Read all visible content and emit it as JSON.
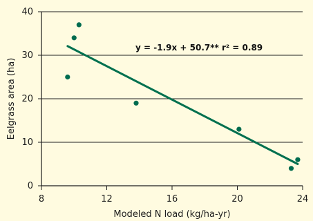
{
  "chart_data": {
    "type": "scatter",
    "title": "",
    "xlabel": "Modeled N load (kg/ha-yr)",
    "ylabel": "Eelgrass area (ha)",
    "xlim": [
      8,
      24
    ],
    "ylim": [
      0,
      40
    ],
    "x_ticks": [
      8,
      12,
      16,
      20,
      24
    ],
    "y_ticks": [
      0,
      10,
      20,
      30,
      40
    ],
    "x_tick_labels": [
      "8",
      "12",
      "16",
      "20",
      "24"
    ],
    "y_tick_labels": [
      "0",
      "10",
      "20",
      "30",
      "40"
    ],
    "grid": "horizontal",
    "series": [
      {
        "x": [
          9.6,
          10.0,
          10.3,
          13.8,
          20.1,
          23.3,
          23.7
        ],
        "y": [
          25,
          34,
          37,
          19,
          13,
          4,
          6
        ]
      }
    ],
    "trendline": {
      "x": [
        9.6,
        23.7
      ],
      "y": [
        32.1,
        5.0
      ]
    },
    "annotation": "y = -1.9x + 50.7** r² = 0.89",
    "colors": {
      "background": "#fffbe0",
      "points": "#006c4f",
      "trendline": "#00704f",
      "axis": "#1d1d1d",
      "grid": "#222222"
    }
  }
}
